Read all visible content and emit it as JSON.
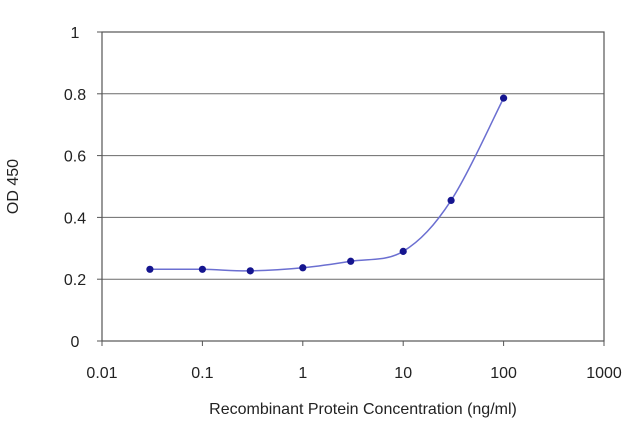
{
  "chart_data": {
    "type": "line",
    "title": "",
    "xlabel": "Recombinant Protein Concentration (ng/ml)",
    "ylabel": "OD 450",
    "x_scale": "log",
    "xlim": [
      0.01,
      1000
    ],
    "ylim": [
      0,
      1
    ],
    "x_ticks": [
      "0.01",
      "0.1",
      "1",
      "10",
      "100",
      "1000"
    ],
    "y_ticks": [
      "0",
      "0.2",
      "0.4",
      "0.6",
      "0.8",
      "1"
    ],
    "grid": "horizontal",
    "series": [
      {
        "x": [
          0.03,
          0.1,
          0.3,
          1,
          3,
          10,
          30,
          100
        ],
        "y": [
          0.232,
          0.232,
          0.227,
          0.237,
          0.258,
          0.29,
          0.455,
          0.786
        ],
        "color": "#6b6fd1",
        "marker_color": "#15158f"
      }
    ]
  }
}
